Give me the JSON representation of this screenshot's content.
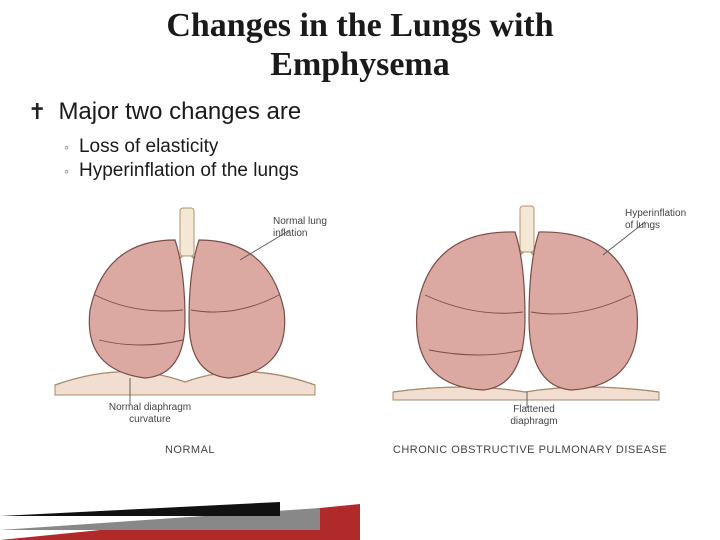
{
  "title_line1": "Changes in the Lungs with",
  "title_line2": "Emphysema",
  "main_bullet": "Major two changes are",
  "sub_bullets": [
    "Loss of elasticity",
    "Hyperinflation of the lungs"
  ],
  "figure": {
    "left": {
      "caption": "NORMAL",
      "ann_top": "Normal lung\ninflation",
      "ann_bottom": "Normal diaphragm\ncurvature"
    },
    "right": {
      "caption": "CHRONIC OBSTRUCTIVE PULMONARY DISEASE",
      "ann_top": "Hyperinflation\nof lungs",
      "ann_bottom": "Flattened\ndiaphragm"
    }
  },
  "colors": {
    "lung_fill": "#dca8a2",
    "lung_stroke": "#7a4d49",
    "trachea_fill": "#f4e7d6",
    "trachea_stroke": "#b2946c",
    "diaphragm_fill": "#f1ded0",
    "diaphragm_stroke": "#a58a6d",
    "ann_line": "#555555",
    "title_color": "#1a1a1a",
    "wedge_red": "#b02a2a",
    "wedge_gray": "#888888",
    "wedge_black": "#111111"
  }
}
